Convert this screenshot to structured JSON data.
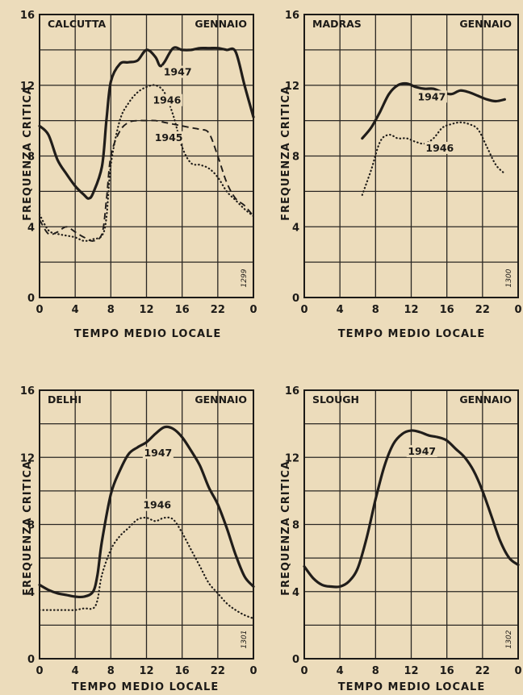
{
  "chart_data": [
    {
      "type": "line",
      "title": "CALCUTTA",
      "subtitle": "GENNAIO",
      "xlabel": "TEMPO MEDIO LOCALE",
      "ylabel": "FREQUENZA CRITICA",
      "figure_number": "1299",
      "x_ticks": [
        "0",
        "4",
        "8",
        "12",
        "16",
        "22",
        "0"
      ],
      "y_ticks": [
        "0",
        "4",
        "8",
        "12",
        "16"
      ],
      "ylim": [
        0,
        16
      ],
      "xlim": [
        0,
        24
      ],
      "grid": true,
      "series": [
        {
          "name": "1947",
          "style": "solid",
          "x": [
            0,
            1,
            2,
            3,
            4,
            5,
            5.5,
            6,
            7,
            7.5,
            8,
            9,
            10,
            11,
            12,
            13,
            13.5,
            14,
            15,
            16,
            17,
            18,
            19,
            20,
            21,
            22,
            23,
            24
          ],
          "y": [
            9.7,
            9.2,
            7.8,
            7.0,
            6.3,
            5.8,
            5.6,
            5.9,
            7.4,
            10.0,
            12.2,
            13.2,
            13.3,
            13.4,
            14.0,
            13.6,
            13.1,
            13.3,
            14.1,
            14.0,
            14.0,
            14.1,
            14.1,
            14.1,
            14.0,
            13.9,
            12.0,
            10.2
          ]
        },
        {
          "name": "1946",
          "style": "dotted",
          "x": [
            0,
            1,
            2,
            3,
            4,
            5,
            6,
            7,
            7.5,
            8,
            9,
            10,
            11,
            12,
            13,
            14,
            15,
            16,
            17,
            18,
            19,
            20,
            21,
            22,
            23,
            24
          ],
          "y": [
            4.7,
            3.8,
            3.6,
            3.5,
            3.4,
            3.2,
            3.3,
            3.5,
            4.5,
            7.5,
            10.0,
            11.0,
            11.6,
            11.9,
            12.0,
            11.6,
            10.3,
            8.5,
            7.6,
            7.5,
            7.3,
            6.8,
            6.0,
            5.5,
            5.0,
            4.6
          ]
        },
        {
          "name": "1945",
          "style": "dashed",
          "x": [
            0,
            1,
            2,
            3,
            4,
            5,
            6,
            7,
            7.5,
            8,
            9,
            10,
            11,
            12,
            13,
            14,
            15,
            16,
            17,
            18,
            19,
            20,
            21,
            22,
            23,
            24
          ],
          "y": [
            4.4,
            3.6,
            3.7,
            4.0,
            3.7,
            3.4,
            3.2,
            3.6,
            5.5,
            8.0,
            9.4,
            9.9,
            10.0,
            10.0,
            10.0,
            9.9,
            9.8,
            9.7,
            9.6,
            9.5,
            9.3,
            8.0,
            6.5,
            5.6,
            5.2,
            4.6
          ]
        }
      ],
      "labels": [
        {
          "text": "1947",
          "x": 15.5,
          "y": 12.6
        },
        {
          "text": "1946",
          "x": 14.3,
          "y": 11.0
        },
        {
          "text": "1945",
          "x": 14.5,
          "y": 8.9
        }
      ]
    },
    {
      "type": "line",
      "title": "MADRAS",
      "subtitle": "GENNAIO",
      "xlabel": "TEMPO MEDIO LOCALE",
      "ylabel": "FREQUENZA CRITICA",
      "figure_number": "1300",
      "x_ticks": [
        "0",
        "4",
        "8",
        "12",
        "16",
        "22",
        "0"
      ],
      "y_ticks": [
        "0",
        "4",
        "8",
        "12",
        "16"
      ],
      "ylim": [
        0,
        16
      ],
      "xlim": [
        0,
        24
      ],
      "grid": true,
      "series": [
        {
          "name": "1947",
          "style": "solid",
          "x": [
            6.5,
            7.5,
            8.5,
            9.5,
            10.5,
            11.5,
            12.5,
            13.5,
            14.5,
            15.5,
            16.5,
            17.5,
            18.5,
            19.5,
            20.5,
            21.5,
            22.5
          ],
          "y": [
            9.0,
            9.6,
            10.5,
            11.5,
            12.0,
            12.1,
            11.9,
            11.8,
            11.8,
            11.6,
            11.5,
            11.7,
            11.6,
            11.4,
            11.2,
            11.1,
            11.2
          ]
        },
        {
          "name": "1946",
          "style": "dotted",
          "x": [
            6.5,
            7.5,
            8.5,
            9.5,
            10.5,
            11.5,
            12.5,
            13.5,
            14.5,
            15.5,
            16.5,
            17.5,
            18.5,
            19.5,
            20.5,
            21.5,
            22.5
          ],
          "y": [
            5.8,
            7.2,
            8.8,
            9.2,
            9.0,
            9.0,
            8.8,
            8.7,
            9.0,
            9.6,
            9.8,
            9.9,
            9.8,
            9.5,
            8.5,
            7.5,
            7.0
          ]
        }
      ],
      "labels": [
        {
          "text": "1947",
          "x": 14.3,
          "y": 11.2
        },
        {
          "text": "1946",
          "x": 15.2,
          "y": 8.3
        }
      ]
    },
    {
      "type": "line",
      "title": "DELHI",
      "subtitle": "GENNAIO",
      "xlabel": "TEMPO MEDIO LOCALE",
      "ylabel": "FREQUENZA CRITICA",
      "figure_number": "1301",
      "x_ticks": [
        "0",
        "4",
        "8",
        "12",
        "16",
        "22",
        "0"
      ],
      "y_ticks": [
        "0",
        "4",
        "8",
        "12",
        "16"
      ],
      "ylim": [
        0,
        16
      ],
      "xlim": [
        0,
        24
      ],
      "grid": true,
      "series": [
        {
          "name": "1947",
          "style": "solid",
          "x": [
            0,
            1,
            2,
            3,
            4,
            5,
            6,
            6.5,
            7,
            8,
            9,
            10,
            11,
            12,
            13,
            14,
            15,
            16,
            17,
            18,
            19,
            20,
            21,
            22,
            23,
            24
          ],
          "y": [
            4.4,
            4.1,
            3.9,
            3.8,
            3.7,
            3.7,
            4.0,
            5.0,
            7.0,
            9.8,
            11.2,
            12.2,
            12.6,
            12.9,
            13.4,
            13.8,
            13.7,
            13.2,
            12.4,
            11.5,
            10.2,
            9.2,
            7.8,
            6.2,
            4.9,
            4.3
          ]
        },
        {
          "name": "1946",
          "style": "dotted",
          "x": [
            0,
            1,
            2,
            3,
            4,
            5,
            6,
            6.5,
            7,
            8,
            9,
            10,
            11,
            12,
            13,
            14,
            15,
            16,
            17,
            18,
            19,
            20,
            21,
            22,
            23,
            24
          ],
          "y": [
            2.9,
            2.9,
            2.9,
            2.9,
            2.9,
            3.0,
            3.0,
            3.5,
            5.0,
            6.5,
            7.3,
            7.8,
            8.3,
            8.4,
            8.2,
            8.4,
            8.3,
            7.5,
            6.5,
            5.5,
            4.5,
            3.9,
            3.3,
            2.9,
            2.6,
            2.4
          ]
        }
      ],
      "labels": [
        {
          "text": "1947",
          "x": 13.3,
          "y": 12.1
        },
        {
          "text": "1946",
          "x": 13.2,
          "y": 9.0
        }
      ]
    },
    {
      "type": "line",
      "title": "SLOUGH",
      "subtitle": "GENNAIO",
      "xlabel": "TEMPO MEDIO LOCALE",
      "ylabel": "FREQUENZA CRITICA",
      "figure_number": "1302",
      "x_ticks": [
        "0",
        "4",
        "8",
        "12",
        "16",
        "22",
        "0"
      ],
      "y_ticks": [
        "0",
        "4",
        "8",
        "12",
        "16"
      ],
      "ylim": [
        0,
        16
      ],
      "xlim": [
        0,
        24
      ],
      "grid": true,
      "series": [
        {
          "name": "1947",
          "style": "solid",
          "x": [
            0,
            1,
            2,
            3,
            4,
            5,
            6,
            7,
            8,
            9,
            10,
            11,
            12,
            13,
            14,
            15,
            16,
            17,
            18,
            19,
            20,
            21,
            22,
            23,
            24
          ],
          "y": [
            5.5,
            4.8,
            4.4,
            4.3,
            4.3,
            4.6,
            5.4,
            7.2,
            9.5,
            11.5,
            12.8,
            13.4,
            13.6,
            13.5,
            13.3,
            13.2,
            13.0,
            12.5,
            12.0,
            11.2,
            10.0,
            8.5,
            7.0,
            6.0,
            5.6
          ]
        }
      ],
      "labels": [
        {
          "text": "1947",
          "x": 13.2,
          "y": 12.2
        }
      ]
    }
  ],
  "colors": {
    "paper": "#ecdcbb",
    "ink": "#1c1a17",
    "grid": "#2a2723",
    "solid_line": "#201d1a"
  }
}
